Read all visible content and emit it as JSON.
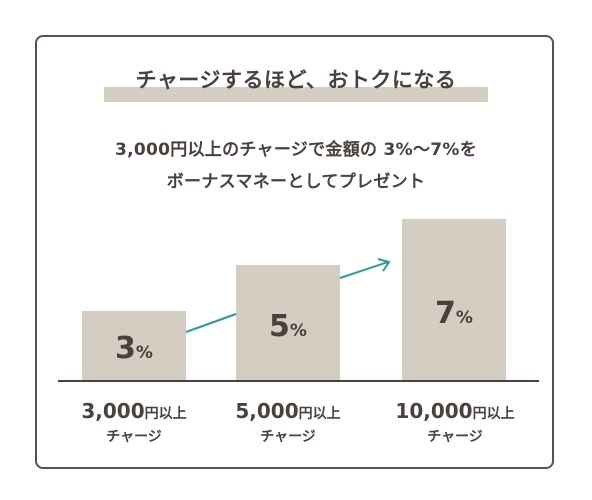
{
  "title": "チャージするほど、おトクになる",
  "description": {
    "line1": "3,000円以上のチャージで金額の 3%〜7%を",
    "line2": "ボーナスマネーとしてプレゼント"
  },
  "colors": {
    "bar": "#d3cdc2",
    "arrow": "#2a9d9a",
    "text": "#4a403c"
  },
  "chart_data": {
    "type": "bar",
    "categories": [
      "3,000円以上",
      "5,000円以上",
      "10,000円以上"
    ],
    "values": [
      3,
      5,
      7
    ],
    "value_unit": "%",
    "title": "",
    "xlabel": "",
    "ylabel": "",
    "ylim": [
      0,
      8
    ],
    "grid": false,
    "legend": "none"
  },
  "tiers": [
    {
      "amount": "3,000",
      "unit": "円以上",
      "sub": "チャージ",
      "value": "3",
      "pct": "%"
    },
    {
      "amount": "5,000",
      "unit": "円以上",
      "sub": "チャージ",
      "value": "5",
      "pct": "%"
    },
    {
      "amount": "10,000",
      "unit": "円以上",
      "sub": "チャージ",
      "value": "7",
      "pct": "%"
    }
  ]
}
